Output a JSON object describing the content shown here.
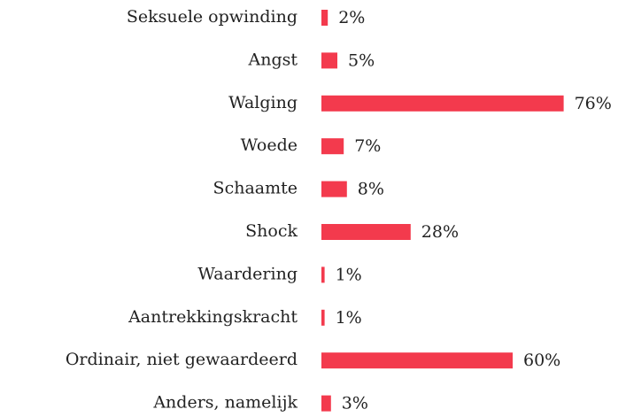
{
  "chart_data": {
    "type": "bar",
    "orientation": "horizontal",
    "color": "#f33a4d",
    "categories": [
      "Seksuele opwinding",
      "Angst",
      "Walging",
      "Woede",
      "Schaamte",
      "Shock",
      "Waardering",
      "Aantrekkingskracht",
      "Ordinair, niet gewaardeerd",
      "Anders, namelijk"
    ],
    "values": [
      2,
      5,
      76,
      7,
      8,
      28,
      1,
      1,
      60,
      3
    ],
    "value_labels": [
      "2%",
      "5%",
      "76%",
      "7%",
      "8%",
      "28%",
      "1%",
      "1%",
      "60%",
      "3%"
    ]
  }
}
